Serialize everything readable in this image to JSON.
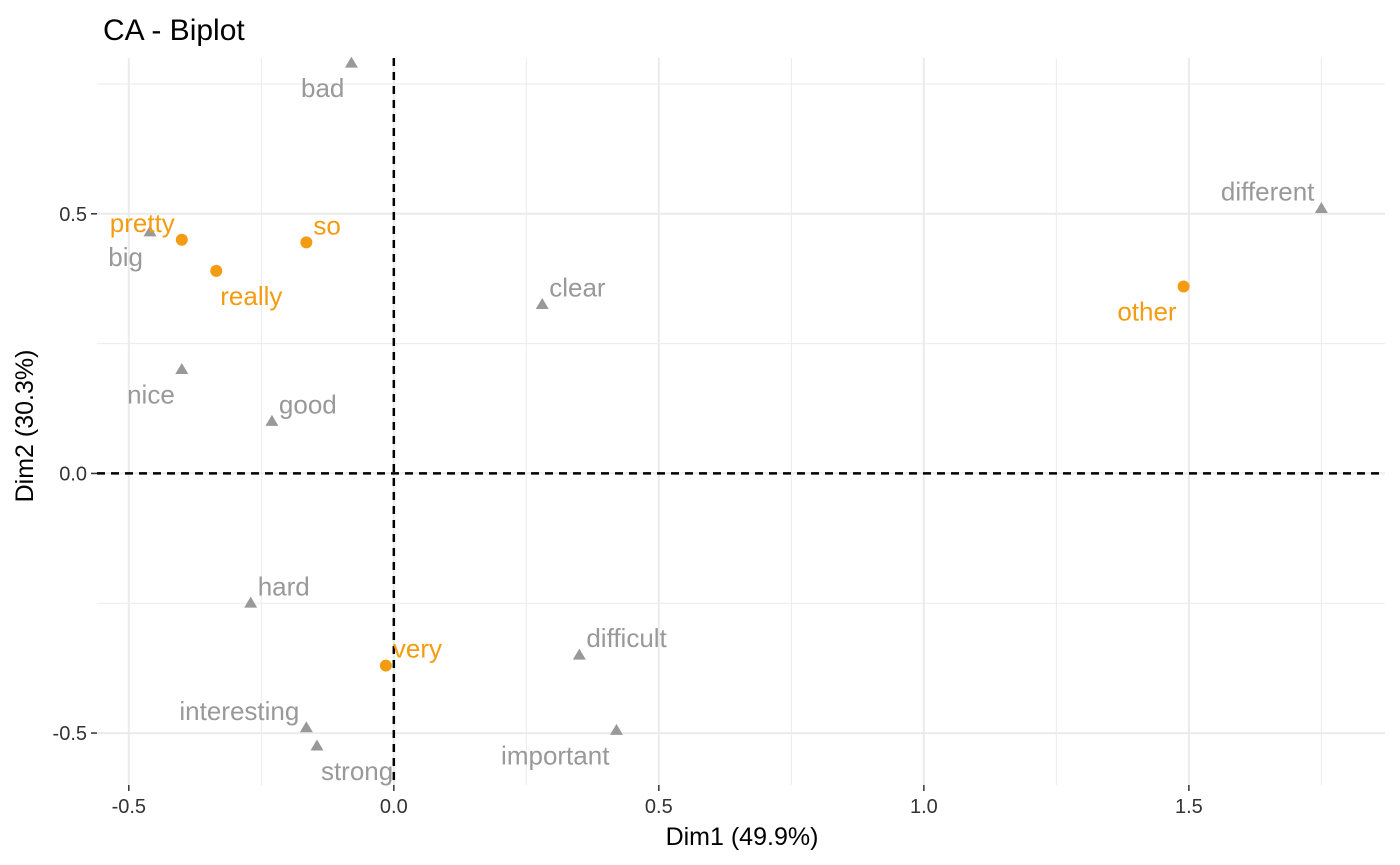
{
  "chart_data": {
    "type": "scatter",
    "title": "CA - Biplot",
    "xlabel": "Dim1 (49.9%)",
    "ylabel": "Dim2 (30.3%)",
    "xlim": [
      -0.56,
      1.87
    ],
    "ylim": [
      -0.6,
      0.8
    ],
    "x_ticks": [
      -0.5,
      0.0,
      0.5,
      1.0,
      1.5
    ],
    "x_tick_labels": [
      "-0.5",
      "0.0",
      "0.5",
      "1.0",
      "1.5"
    ],
    "y_ticks": [
      -0.5,
      0.0,
      0.5
    ],
    "y_tick_labels": [
      "-0.5",
      "0.0",
      "0.5"
    ],
    "grid": true,
    "reference_lines": {
      "x": 0,
      "y": 0,
      "style": "dashed"
    },
    "colors": {
      "row": "#f39c12",
      "col": "#999999",
      "grid": "#ebebeb",
      "ref": "#000000"
    },
    "series": [
      {
        "group": "row",
        "marker": "circle",
        "points": [
          {
            "label": "pretty",
            "x": -0.4,
            "y": 0.45,
            "label_pos": "upper-left"
          },
          {
            "label": "so",
            "x": -0.165,
            "y": 0.445,
            "label_pos": "upper-right"
          },
          {
            "label": "really",
            "x": -0.335,
            "y": 0.39,
            "label_pos": "lower-right"
          },
          {
            "label": "other",
            "x": 1.49,
            "y": 0.36,
            "label_pos": "lower-left"
          },
          {
            "label": "very",
            "x": -0.015,
            "y": -0.37,
            "label_pos": "upper-right"
          }
        ]
      },
      {
        "group": "col",
        "marker": "triangle",
        "points": [
          {
            "label": "bad",
            "x": -0.08,
            "y": 0.79,
            "label_pos": "lower-left"
          },
          {
            "label": "different",
            "x": 1.75,
            "y": 0.51,
            "label_pos": "upper-left"
          },
          {
            "label": "big",
            "x": -0.46,
            "y": 0.465,
            "label_pos": "lower-left"
          },
          {
            "label": "clear",
            "x": 0.28,
            "y": 0.325,
            "label_pos": "upper-right"
          },
          {
            "label": "nice",
            "x": -0.4,
            "y": 0.2,
            "label_pos": "lower-left"
          },
          {
            "label": "good",
            "x": -0.23,
            "y": 0.1,
            "label_pos": "upper-right"
          },
          {
            "label": "hard",
            "x": -0.27,
            "y": -0.25,
            "label_pos": "upper-right"
          },
          {
            "label": "difficult",
            "x": 0.35,
            "y": -0.35,
            "label_pos": "upper-right"
          },
          {
            "label": "interesting",
            "x": -0.165,
            "y": -0.49,
            "label_pos": "upper-left"
          },
          {
            "label": "important",
            "x": 0.42,
            "y": -0.495,
            "label_pos": "lower-left"
          },
          {
            "label": "strong",
            "x": -0.145,
            "y": -0.525,
            "label_pos": "lower-right"
          }
        ]
      }
    ]
  }
}
